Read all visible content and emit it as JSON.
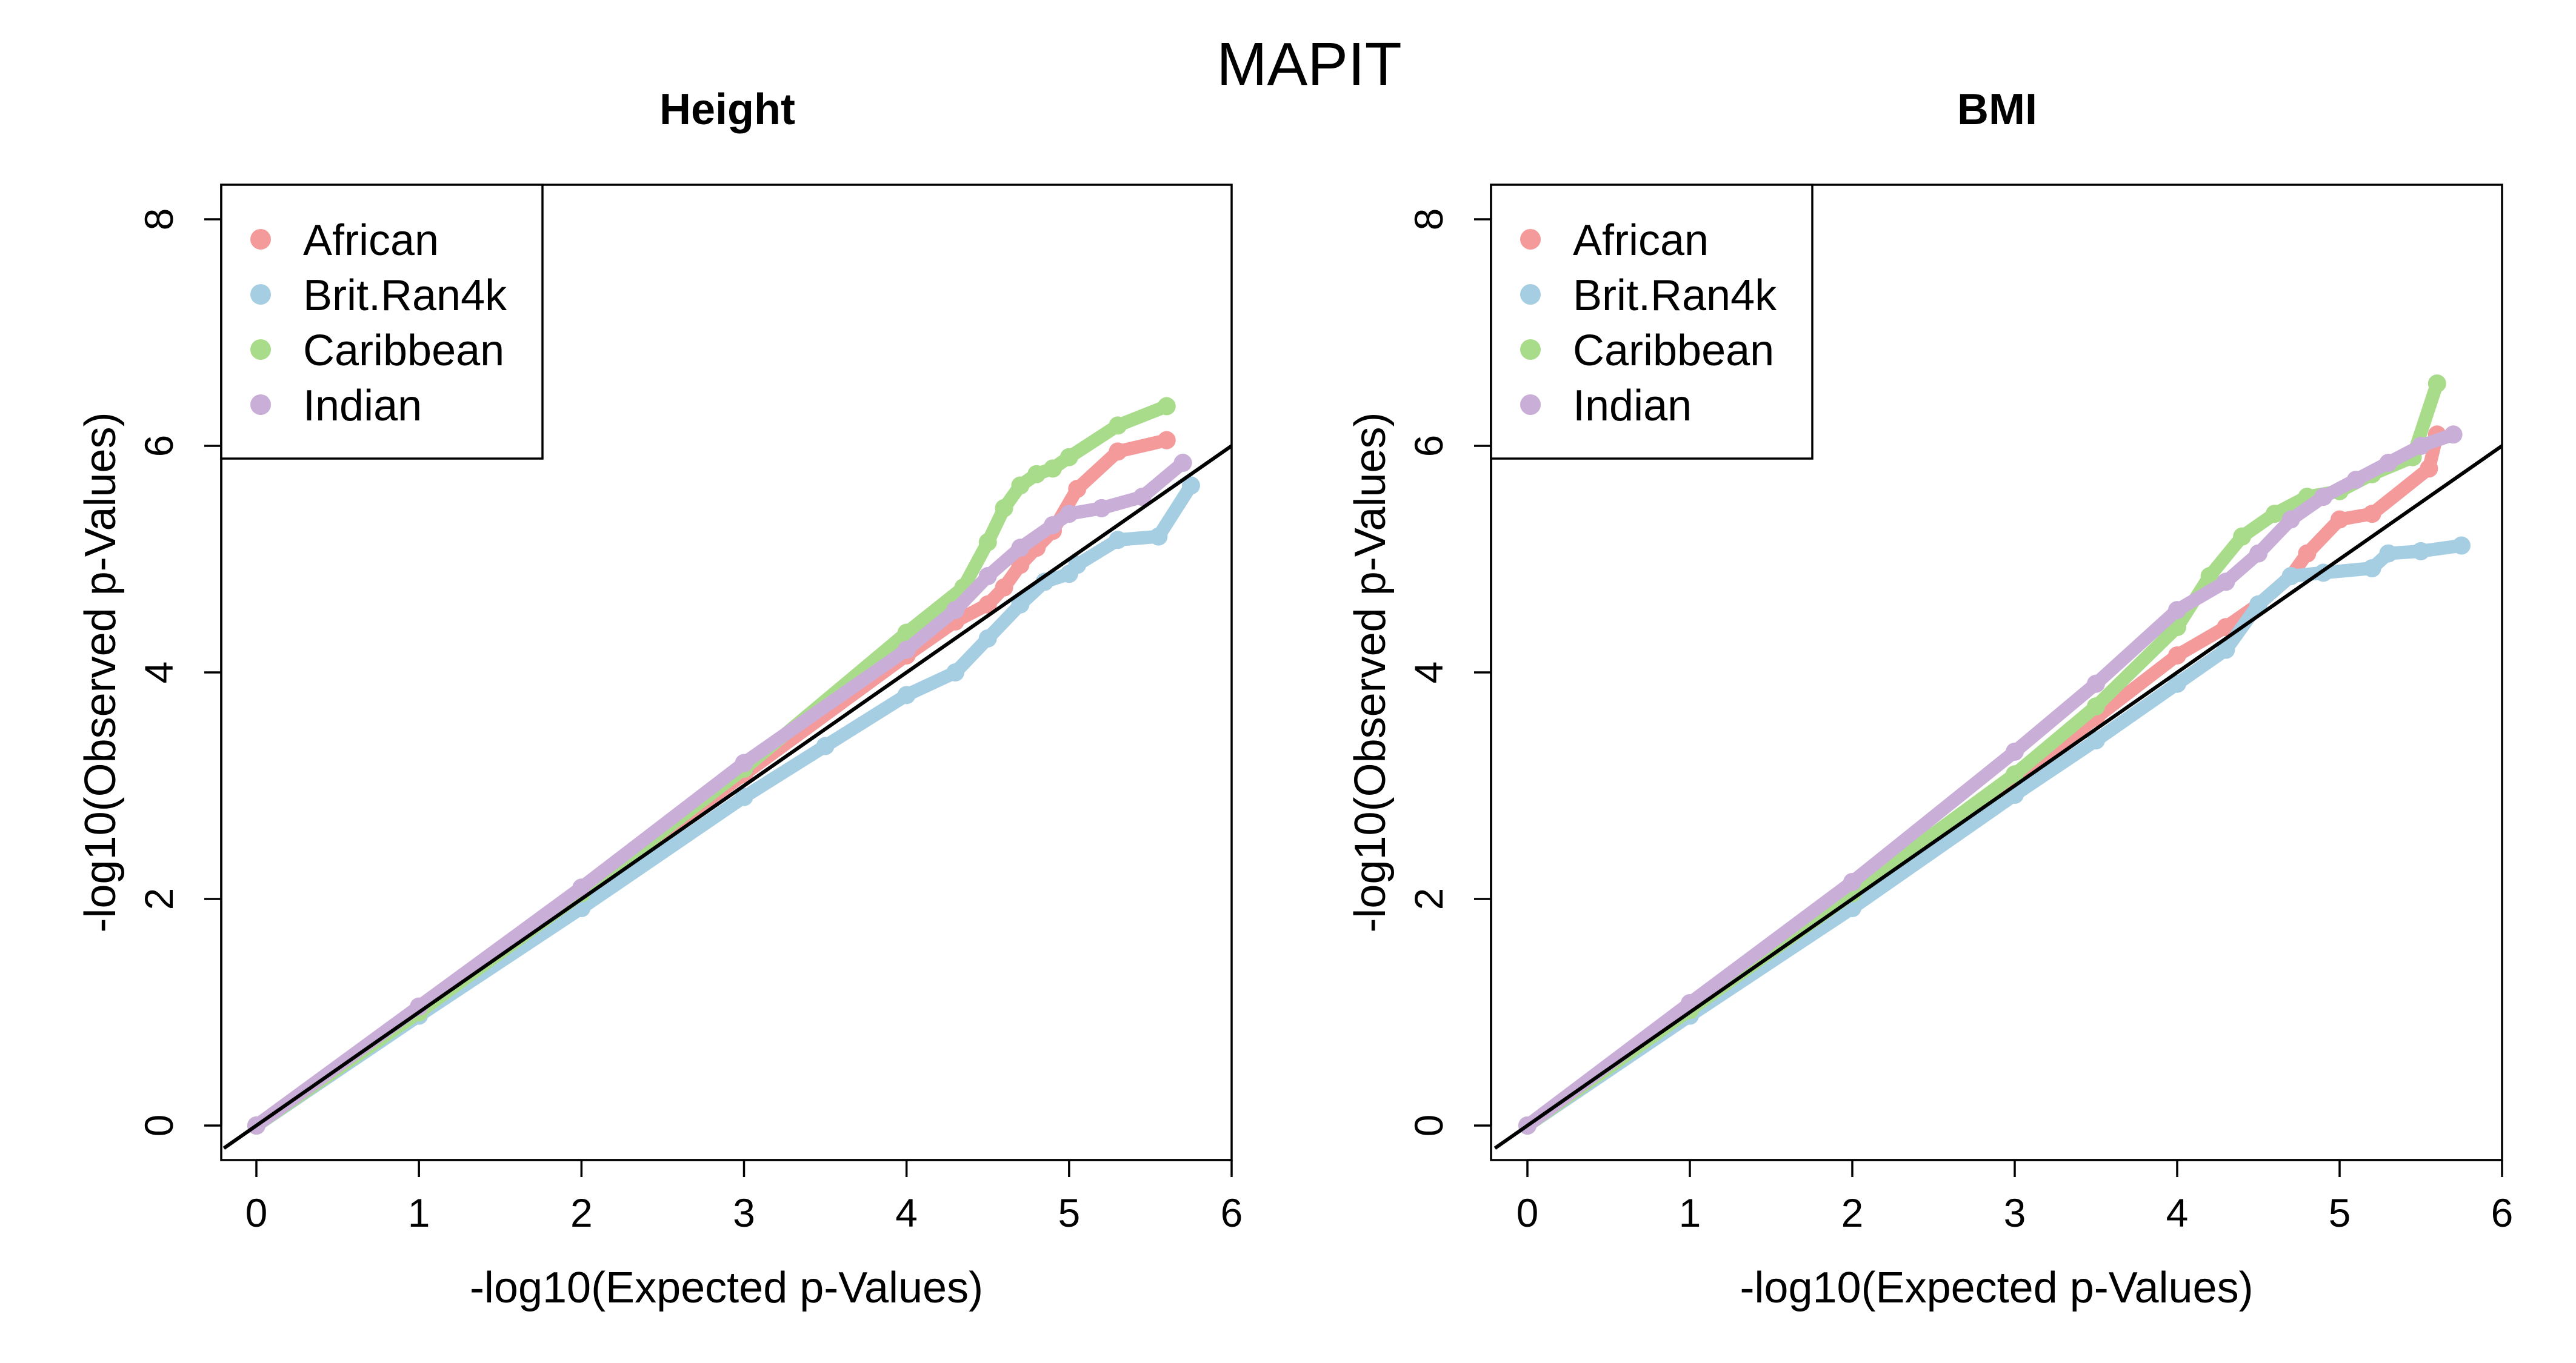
{
  "figure_title": "MAPIT",
  "colors": {
    "African": "#F49A9A",
    "Brit.Ran4k": "#A6CEE3",
    "Caribbean": "#A9DC8A",
    "Indian": "#C9AED8",
    "reference_line": "#000000"
  },
  "chart_data": [
    {
      "type": "scatter",
      "title": "Height",
      "xlabel": "-log10(Expected p-Values)",
      "ylabel": "-log10(Observed p-Values)",
      "xlim": [
        0,
        6
      ],
      "ylim": [
        0,
        8
      ],
      "xticks": [
        "0",
        "1",
        "2",
        "3",
        "4",
        "5",
        "6"
      ],
      "yticks": [
        "0",
        "2",
        "4",
        "6",
        "8"
      ],
      "legend_position": "top-left",
      "reference_line": {
        "slope": 1,
        "intercept": 0
      },
      "series": [
        {
          "name": "African",
          "x": [
            0,
            1,
            2,
            3,
            4,
            4.3,
            4.5,
            4.6,
            4.7,
            4.8,
            4.9,
            5.05,
            5.3,
            5.6
          ],
          "y": [
            0,
            1.02,
            2.05,
            3.1,
            4.15,
            4.45,
            4.6,
            4.75,
            4.95,
            5.1,
            5.25,
            5.62,
            5.95,
            6.05
          ]
        },
        {
          "name": "Brit.Ran4k",
          "x": [
            0,
            1,
            2,
            3,
            3.5,
            4,
            4.3,
            4.5,
            4.7,
            4.85,
            5.0,
            5.05,
            5.3,
            5.55,
            5.75
          ],
          "y": [
            0,
            0.97,
            1.92,
            2.9,
            3.35,
            3.8,
            4.0,
            4.3,
            4.6,
            4.8,
            4.87,
            4.95,
            5.17,
            5.2,
            5.65
          ]
        },
        {
          "name": "Caribbean",
          "x": [
            0,
            1,
            2,
            3,
            4,
            4.35,
            4.5,
            4.6,
            4.7,
            4.8,
            4.9,
            5.0,
            5.3,
            5.6
          ],
          "y": [
            0,
            1.0,
            2.05,
            3.15,
            4.35,
            4.75,
            5.15,
            5.45,
            5.65,
            5.75,
            5.8,
            5.9,
            6.18,
            6.35
          ]
        },
        {
          "name": "Indian",
          "x": [
            0,
            1,
            2,
            3,
            4,
            4.3,
            4.5,
            4.7,
            4.9,
            5.0,
            5.2,
            5.45,
            5.7
          ],
          "y": [
            0,
            1.05,
            2.1,
            3.2,
            4.2,
            4.55,
            4.85,
            5.1,
            5.3,
            5.4,
            5.45,
            5.55,
            5.85
          ]
        }
      ]
    },
    {
      "type": "scatter",
      "title": "BMI",
      "xlabel": "-log10(Expected p-Values)",
      "ylabel": "-log10(Observed p-Values)",
      "xlim": [
        0,
        6
      ],
      "ylim": [
        0,
        8
      ],
      "xticks": [
        "0",
        "1",
        "2",
        "3",
        "4",
        "5",
        "6"
      ],
      "yticks": [
        "0",
        "2",
        "4",
        "6",
        "8"
      ],
      "legend_position": "top-left",
      "reference_line": {
        "slope": 1,
        "intercept": 0
      },
      "series": [
        {
          "name": "African",
          "x": [
            0,
            1,
            2,
            3,
            3.5,
            4,
            4.3,
            4.5,
            4.7,
            4.8,
            5.0,
            5.2,
            5.55,
            5.6
          ],
          "y": [
            0,
            1.0,
            2.0,
            3.05,
            3.6,
            4.15,
            4.4,
            4.6,
            4.85,
            5.05,
            5.35,
            5.4,
            5.8,
            6.1
          ]
        },
        {
          "name": "Brit.Ran4k",
          "x": [
            0,
            1,
            2,
            3,
            3.5,
            4,
            4.3,
            4.5,
            4.7,
            4.9,
            5.2,
            5.3,
            5.5,
            5.75
          ],
          "y": [
            0,
            0.97,
            1.92,
            2.92,
            3.4,
            3.9,
            4.2,
            4.6,
            4.85,
            4.88,
            4.92,
            5.05,
            5.07,
            5.12
          ]
        },
        {
          "name": "Caribbean",
          "x": [
            0,
            1,
            2,
            3,
            3.5,
            4,
            4.2,
            4.4,
            4.6,
            4.8,
            5.0,
            5.2,
            5.45,
            5.6
          ],
          "y": [
            0,
            1.02,
            2.05,
            3.1,
            3.7,
            4.4,
            4.85,
            5.2,
            5.4,
            5.55,
            5.6,
            5.75,
            5.9,
            6.55
          ]
        },
        {
          "name": "Indian",
          "x": [
            0,
            1,
            2,
            3,
            3.5,
            4,
            4.3,
            4.5,
            4.7,
            4.9,
            5.1,
            5.3,
            5.5,
            5.7
          ],
          "y": [
            0,
            1.08,
            2.15,
            3.3,
            3.9,
            4.55,
            4.8,
            5.05,
            5.35,
            5.55,
            5.7,
            5.85,
            6.0,
            6.1
          ]
        }
      ]
    }
  ]
}
